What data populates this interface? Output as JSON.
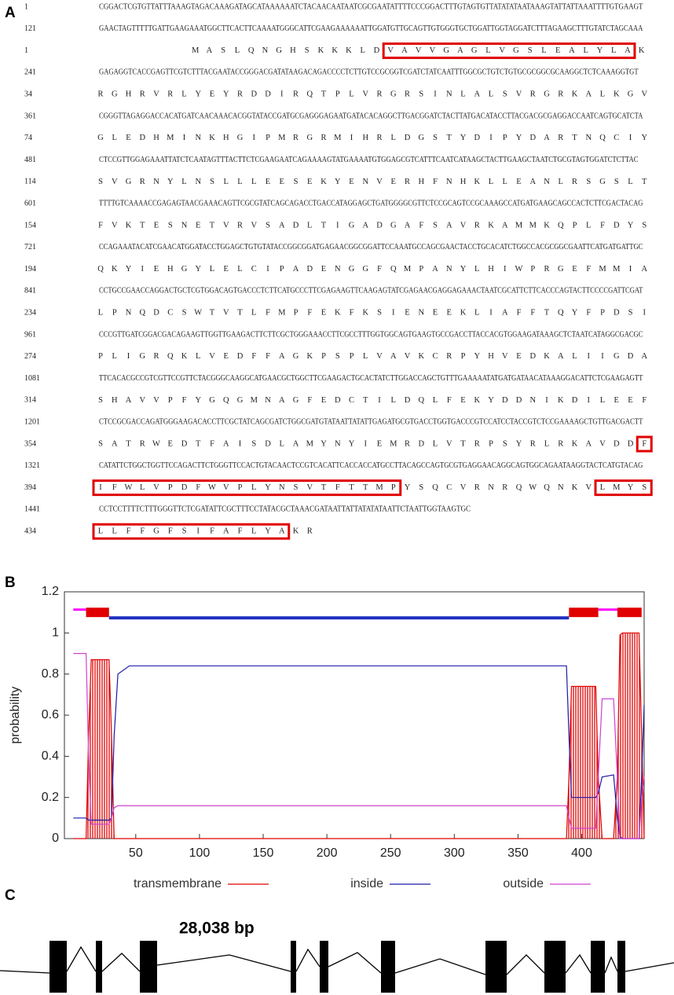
{
  "panel_a": {
    "label": "A",
    "rows": [
      {
        "number": 1,
        "seq": "CGGACTCGTGTTATTTAAAGTAGACAAAGATAGCATAAAAAATCTACAACAATAATCGCGAATATTTTCCCGGACTTTGTAGTGTTATATATAATAAAGTATTATTAAATTTTGTGAAGT"
      },
      {
        "number": 121,
        "seq": "GAACTAGTTTTTGATTGAAGAAATGGCTTCACTTCAAAATGGGCATTCGAAGAAAAAATTGGATGTTGCAGTTGTGGGTGCTGGATTGGTAGGATCTTTAGAAGCTTTGTATCTAGCAAA"
      },
      {
        "number": 1,
        "segments": [
          {
            "text": "M A S L Q N G H S K K K L D",
            "boxed": false
          },
          {
            "text": "V A V V G A G L V G S L E A L Y L A",
            "boxed": true
          },
          {
            "text": "K",
            "boxed": false
          }
        ]
      },
      {
        "number": 241,
        "seq": "GAGAGGTCACCGAGTTCGTCTTTACGAATACCGGGACGATATAAGACAGACCCCTCTTGTCCGCGGTCGATCTATCAATTTGGCGCTGTCTGTGCGCGGCGCAAGGCTCTCAAAGGTGT"
      },
      {
        "number": 34,
        "segments": [
          {
            "text": "R G H R V R L Y E Y R D D I R Q T P L V R G R S I N L A L S V R G R K A L K G V",
            "boxed": false
          }
        ]
      },
      {
        "number": 361,
        "seq": "CGGGTTAGAGGACCACATGATCAACAAACACGGTATACCGATGCGAGGGAGAATGATACACAGGCTTGACGGATCTACTTATGACATACCTTACGACGCGAGGACCAATCAGTGCATCTA"
      },
      {
        "number": 74,
        "segments": [
          {
            "text": "G L E D H M I N K H G I P M R G R M I H R L D G S T Y D I P Y D A R T N Q C I Y",
            "boxed": false
          }
        ]
      },
      {
        "number": 481,
        "seq": "CTCCGTTGGAGAAATTATCTCAATAGTTTACTTCTCGAAGAATCAGAAAAGTATGAAAATGTGGAGCGTCATTTCAATCATAAGCTACTTGAAGCTAATCTGCGTAGTGGATCTCTTAC"
      },
      {
        "number": 114,
        "segments": [
          {
            "text": "S V G R N Y L N S L L L E E S E K Y E N V E R H F N H K L L E A N L R S G S L T",
            "boxed": false
          }
        ]
      },
      {
        "number": 601,
        "seq": "TTTTGTCAAAACCGAGAGTAACGAAACAGTTCGCGTATCAGCAGACCTGACCATAGGAGCTGATGGGGCGTTCTCCGCAGTCCGCAAAGCCATGATGAAGCAGCCACTCTTCGACTACAG"
      },
      {
        "number": 154,
        "segments": [
          {
            "text": "F V K T E S N E T V R V S A D L T I G A D G A F S A V R K A M M K Q P L F D Y S",
            "boxed": false
          }
        ]
      },
      {
        "number": 721,
        "seq": "CCAGAAATACATCGAACATGGATACCTGGAGCTGTGTATACCGGCGGATGAGAACGGCGGATTCCAAATGCCAGCGAACTACCTGCACATCTGGCCACGCGGCGAATTCATGATGATTGC"
      },
      {
        "number": 194,
        "segments": [
          {
            "text": "Q K Y I E H G Y L E L C I P A D E N G G F Q M P A N Y L H I W P R G E F M M I A",
            "boxed": false
          }
        ]
      },
      {
        "number": 841,
        "seq": "CCTGCCGAACCAGGACTGCTCGTGGACAGTGACCCTCTTCATGCCCTTCGAGAAGTTCAAGAGTATCGAGAACGAGGAGAAACTAATCGCATTCTTCACCCAGTACTTCCCCGATTCGAT"
      },
      {
        "number": 234,
        "segments": [
          {
            "text": "L P N Q D C S W T V T L F M P F E K F K S I E N E E K L I A F F T Q Y F P D S I",
            "boxed": false
          }
        ]
      },
      {
        "number": 961,
        "seq": "CCCGTTGATCGGACGACAGAAGTTGGTTGAAGACTTCTTCGCTGGGAAACCTTCGCCTTTGGTGGCAGTGAAGTGCCGACCTTACCACGTGGAAGATAAAGCTCTAATCATAGGCGACGC"
      },
      {
        "number": 274,
        "segments": [
          {
            "text": "P L I G R Q K L V E D F F A G K P S P L V A V K C R P Y H V E D K A L I I G D A",
            "boxed": false
          }
        ]
      },
      {
        "number": 1081,
        "seq": "TTCACACGCCGTCGTTCCGTTCTACGGGCAAGGCATGAACGCTGGCTTCGAAGACTGCACTATCTTGGACCAGCTGTTTGAAAAATATGATGATAACATAAAGGACATTCTCGAAGAGTT"
      },
      {
        "number": 314,
        "segments": [
          {
            "text": "S H A V V P F Y G Q G M N A G F E D C T I L D Q L F E K Y D D N I K D I L E E F",
            "boxed": false
          }
        ]
      },
      {
        "number": 1201,
        "seq": "CTCCGCGACCAGATGGGAAGACACCTTCGCTATCAGCGATCTGGCGATGTATAATTATATTGAGATGCGTGACCTGGTGACCCGTCCATCCTACCGTCTCCGAAAAGCTGTTGACGACTT"
      },
      {
        "number": 354,
        "segments": [
          {
            "text": "S A T R W E D T F A I S D L A M Y N Y I E M R D L V T R P S Y R L R K A V D D",
            "boxed": false
          },
          {
            "text": "F",
            "boxed": true
          }
        ]
      },
      {
        "number": 1321,
        "seq": "CATATTCTGGCTGGTTCCAGACTTCTGGGTTCCACTGTACAACTCCGTCACATTCACCACCATGCCTTACAGCCAGTGCGTGAGGAACAGGCAGTGGCAGAATAAGGTACTCATGTACAG"
      },
      {
        "number": 394,
        "segments": [
          {
            "text": "I F W L V P D F W V P L Y N S V T F T T M P",
            "boxed": true
          },
          {
            "text": "Y S Q C V R N R Q W Q N K V",
            "boxed": false
          },
          {
            "text": "L M Y S",
            "boxed": true
          }
        ]
      },
      {
        "number": 1441,
        "seq": "CCTCCTTTTCTTTGGGTTCTCGATATTCGCTTTCCTATACGCTAAACGATAATTATTATATATAATTCTAATTGGTAAGTGC"
      },
      {
        "number": 434,
        "segments": [
          {
            "text": "L L F F G F S I F A F L Y A",
            "boxed": true
          },
          {
            "text": "K R",
            "boxed": false
          }
        ]
      }
    ]
  },
  "chart_data": {
    "type": "line",
    "panel_label": "B",
    "ylabel": "probability",
    "x": [
      1,
      11,
      13,
      15,
      29,
      31,
      33,
      36,
      45,
      388,
      390,
      392,
      411,
      413,
      416,
      425,
      428,
      430,
      432,
      445,
      447,
      449
    ],
    "series": [
      {
        "name": "transmembrane",
        "color": "#e00000",
        "values": [
          0,
          0,
          0.5,
          0.87,
          0.87,
          0.5,
          0,
          0,
          0,
          0,
          0.3,
          0.74,
          0.74,
          0.3,
          0,
          0,
          0.3,
          0.99,
          1,
          1,
          0.5,
          0
        ],
        "bars": [
          [
            11,
            29
          ],
          [
            390,
            413
          ],
          [
            428,
            447
          ]
        ]
      },
      {
        "name": "inside",
        "color": "#1a1aa8",
        "values": [
          0.1,
          0.1,
          0.09,
          0.09,
          0.09,
          0.1,
          0.5,
          0.8,
          0.84,
          0.84,
          0.5,
          0.2,
          0.2,
          0.22,
          0.3,
          0.31,
          0.1,
          0.01,
          0,
          0,
          0.3,
          0.65
        ],
        "bars": [
          [
            29,
            390
          ]
        ]
      },
      {
        "name": "outside",
        "color": "#d040d0",
        "values": [
          0.9,
          0.9,
          0.4,
          0.07,
          0.07,
          0.1,
          0.15,
          0.16,
          0.16,
          0.16,
          0.1,
          0.05,
          0.05,
          0.3,
          0.68,
          0.68,
          0.3,
          0,
          0,
          0,
          0.2,
          0.3
        ],
        "bars": [
          [
            1,
            11
          ],
          [
            413,
            428
          ]
        ]
      }
    ],
    "xlim": [
      -6,
      449
    ],
    "ylim": [
      0,
      1.2
    ],
    "xticks": [
      50,
      100,
      150,
      200,
      250,
      300,
      350,
      400
    ],
    "yticks": [
      0,
      0.2,
      0.4,
      0.6,
      0.8,
      1,
      1.2
    ],
    "grid": false,
    "legend": "bottom"
  },
  "panel_c": {
    "label": "C",
    "length_label": "28,038 bp"
  }
}
